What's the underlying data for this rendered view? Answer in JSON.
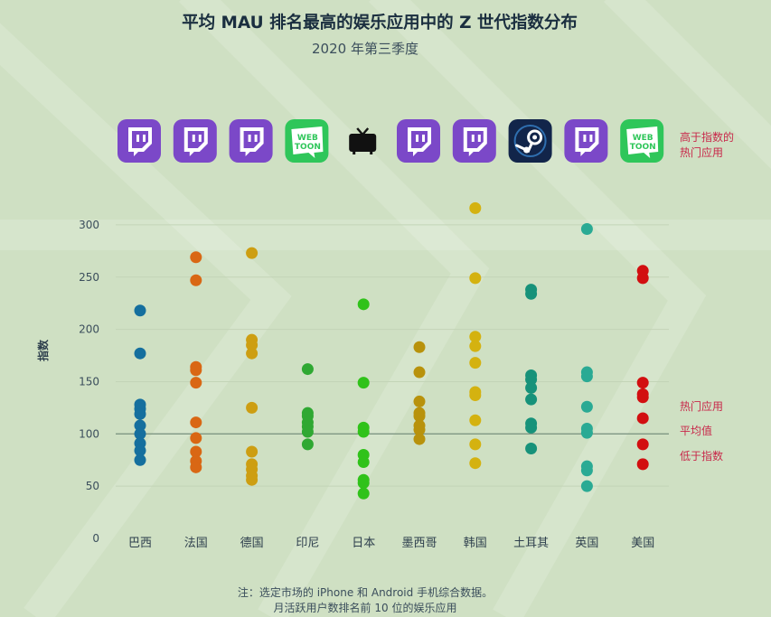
{
  "header": {
    "title": "平均 MAU 排名最高的娱乐应用中的 Z 世代指数分布",
    "subtitle": "2020 年第三季度"
  },
  "top_apps": {
    "icons": [
      "twitch-icon",
      "twitch-icon",
      "twitch-icon",
      "webtoon-icon",
      "tv-icon",
      "twitch-icon",
      "twitch-icon",
      "steam-icon",
      "twitch-icon",
      "webtoon-icon"
    ],
    "legend_line1": "高于指数的",
    "legend_line2": "热门应用"
  },
  "legend": {
    "hot": "热门应用",
    "avg": "平均值",
    "below": "低于指数"
  },
  "footer": {
    "line1": "注：选定市场的 iPhone 和 Android 手机综合数据。",
    "line2": "月活跃用户数排名前 10 位的娱乐应用"
  },
  "webtoon_text": {
    "top": "WEB",
    "bottom": "TOON"
  },
  "colors": {
    "background": "#cfe0c3",
    "twitch": "#7b48c8",
    "webtoon": "#2fc65a",
    "steam": "#12254a",
    "accent_text": "#c8284a",
    "average_line": "#7f9784"
  },
  "chart_data": {
    "type": "scatter",
    "ylabel": "指数",
    "yticks": [
      0,
      50,
      100,
      150,
      200,
      250,
      300
    ],
    "ylim": [
      0,
      320
    ],
    "average": 100,
    "categories": [
      "巴西",
      "法国",
      "德国",
      "印尼",
      "日本",
      "墨西哥",
      "韩国",
      "土耳其",
      "英国",
      "美国"
    ],
    "series": [
      {
        "category": "巴西",
        "color": "#156f9e",
        "values": [
          218,
          177,
          128,
          124,
          119,
          108,
          100,
          91,
          84,
          75
        ]
      },
      {
        "category": "法国",
        "color": "#d96714",
        "values": [
          269,
          247,
          164,
          161,
          149,
          111,
          96,
          83,
          74,
          68
        ]
      },
      {
        "category": "德国",
        "color": "#cd9e12",
        "values": [
          273,
          190,
          185,
          177,
          125,
          83,
          71,
          66,
          60,
          56
        ]
      },
      {
        "category": "印尼",
        "color": "#2fa832",
        "values": [
          162,
          120,
          117,
          111,
          107,
          102,
          90
        ]
      },
      {
        "category": "日本",
        "color": "#30c21a",
        "values": [
          224,
          149,
          106,
          102,
          80,
          73,
          56,
          53,
          43
        ]
      },
      {
        "category": "墨西哥",
        "color": "#b8920c",
        "values": [
          183,
          159,
          131,
          120,
          117,
          108,
          104,
          95
        ]
      },
      {
        "category": "韩国",
        "color": "#d4b210",
        "values": [
          316,
          249,
          193,
          184,
          168,
          140,
          137,
          113,
          90,
          72
        ]
      },
      {
        "category": "土耳其",
        "color": "#17927a",
        "values": [
          238,
          234,
          156,
          152,
          144,
          133,
          110,
          106,
          86
        ]
      },
      {
        "category": "英国",
        "color": "#2aaa94",
        "values": [
          296,
          159,
          155,
          126,
          105,
          101,
          69,
          65,
          50
        ]
      },
      {
        "category": "美国",
        "color": "#d20f10",
        "values": [
          256,
          249,
          149,
          138,
          135,
          115,
          90,
          71
        ]
      }
    ]
  }
}
